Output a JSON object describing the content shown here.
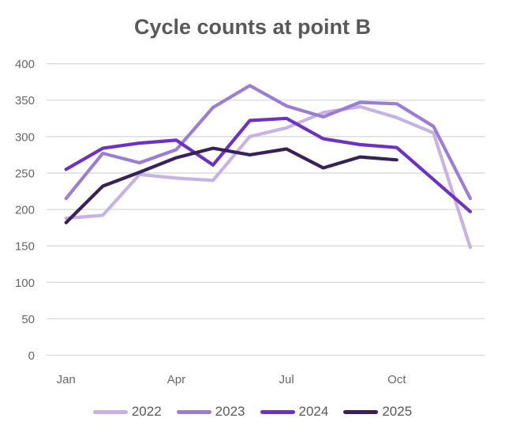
{
  "title": "Cycle counts at point B",
  "colors": {
    "background": "#ffffff",
    "title_text": "#595959",
    "axis_text": "#666666",
    "gridline": "#d9d9d9",
    "legend_text": "#595959"
  },
  "legend": {
    "position": "bottom",
    "items": [
      "2022",
      "2023",
      "2024",
      "2025"
    ]
  },
  "chart_data": {
    "type": "line",
    "title": "Cycle counts at point B",
    "xlabel": "",
    "ylabel": "",
    "categories": [
      "Jan",
      "Feb",
      "Mar",
      "Apr",
      "May",
      "Jun",
      "Jul",
      "Aug",
      "Sep",
      "Oct",
      "Nov",
      "Dec"
    ],
    "x_tick_labels_shown": [
      "Jan",
      "Apr",
      "Jul",
      "Oct"
    ],
    "ylim": [
      0,
      400
    ],
    "ytick_step": 50,
    "grid": "horizontal",
    "legend_position": "bottom",
    "series": [
      {
        "name": "2022",
        "color": "#c7b2e5",
        "values": [
          188,
          192,
          248,
          243,
          240,
          300,
          312,
          333,
          341,
          326,
          305,
          148
        ]
      },
      {
        "name": "2023",
        "color": "#9b7ed3",
        "values": [
          215,
          277,
          264,
          282,
          340,
          370,
          342,
          327,
          347,
          345,
          314,
          215
        ]
      },
      {
        "name": "2024",
        "color": "#6d31c4",
        "values": [
          255,
          284,
          291,
          295,
          261,
          322,
          325,
          297,
          289,
          285,
          241,
          197
        ]
      },
      {
        "name": "2025",
        "color": "#382058",
        "values": [
          182,
          232,
          251,
          271,
          284,
          275,
          283,
          257,
          272,
          268,
          null,
          null
        ]
      }
    ]
  }
}
